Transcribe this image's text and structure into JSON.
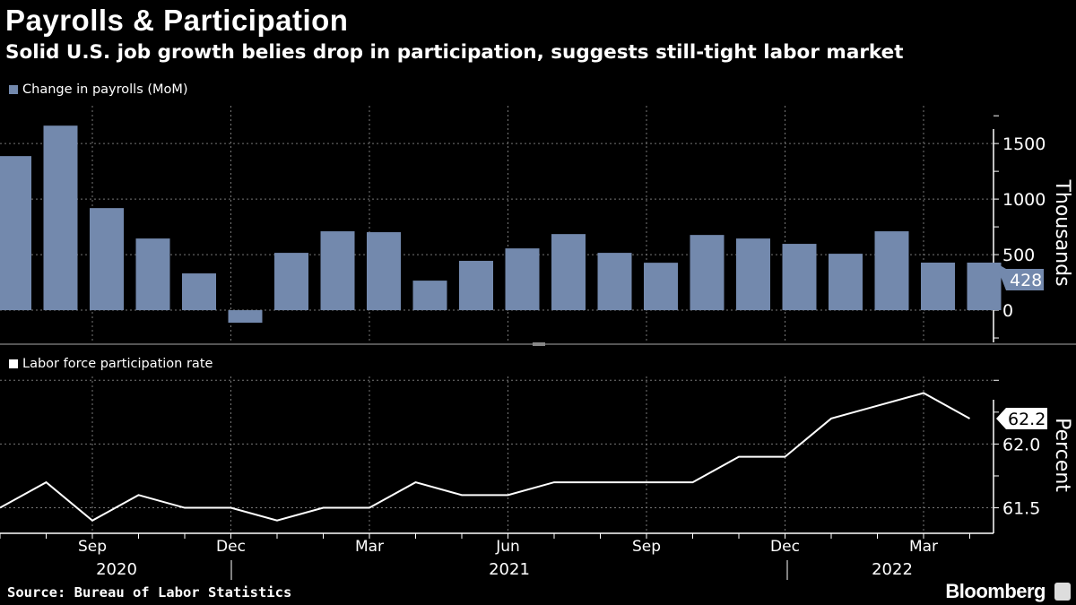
{
  "header": {
    "title": "Payrolls & Participation",
    "subtitle": "Solid U.S. job growth belies drop in participation, suggests still-tight labor market"
  },
  "footer": {
    "source": "Source: Bureau of Labor Statistics",
    "logo": "Bloomberg"
  },
  "chart_data": [
    {
      "type": "bar",
      "legend": "Change in payrolls (MoM)",
      "ylabel": "Thousands",
      "ylim": [
        -290,
        1840
      ],
      "yticks": [
        0,
        500,
        1000,
        1500
      ],
      "grid": true,
      "color": "#7389ad",
      "months": [
        "Jul 2020",
        "Aug 2020",
        "Sep 2020",
        "Oct 2020",
        "Nov 2020",
        "Dec 2020",
        "Jan 2021",
        "Feb 2021",
        "Mar 2021",
        "Apr 2021",
        "May 2021",
        "Jun 2021",
        "Jul 2021",
        "Aug 2021",
        "Sep 2021",
        "Oct 2021",
        "Nov 2021",
        "Dec 2021",
        "Jan 2022",
        "Feb 2022",
        "Mar 2022",
        "Apr 2022"
      ],
      "values": [
        1387,
        1661,
        919,
        645,
        331,
        -113,
        516,
        710,
        702,
        266,
        444,
        556,
        685,
        516,
        427,
        677,
        645,
        597,
        508,
        710,
        428,
        428
      ],
      "last_value_label": "428"
    },
    {
      "type": "line",
      "legend": "Labor force participation rate",
      "ylabel": "Percent",
      "ylim": [
        61.3,
        62.53
      ],
      "yticks": [
        61.5,
        62.0
      ],
      "grid": true,
      "color": "#ffffff",
      "months": [
        "Jul 2020",
        "Aug 2020",
        "Sep 2020",
        "Oct 2020",
        "Nov 2020",
        "Dec 2020",
        "Jan 2021",
        "Feb 2021",
        "Mar 2021",
        "Apr 2021",
        "May 2021",
        "Jun 2021",
        "Jul 2021",
        "Aug 2021",
        "Sep 2021",
        "Oct 2021",
        "Nov 2021",
        "Dec 2021",
        "Jan 2022",
        "Feb 2022",
        "Mar 2022",
        "Apr 2022"
      ],
      "values": [
        61.5,
        61.7,
        61.4,
        61.6,
        61.5,
        61.5,
        61.4,
        61.5,
        61.5,
        61.7,
        61.6,
        61.6,
        61.7,
        61.7,
        61.7,
        61.7,
        61.9,
        61.9,
        62.2,
        62.3,
        62.4,
        62.2
      ],
      "last_value_label": "62.2"
    }
  ],
  "x_axis": {
    "month_labels": [
      {
        "index": 2,
        "label": "Sep"
      },
      {
        "index": 5,
        "label": "Dec"
      },
      {
        "index": 8,
        "label": "Mar"
      },
      {
        "index": 11,
        "label": "Jun"
      },
      {
        "index": 14,
        "label": "Sep"
      },
      {
        "index": 17,
        "label": "Dec"
      },
      {
        "index": 20,
        "label": "Mar"
      }
    ],
    "year_labels": [
      "2020",
      "2021",
      "2022"
    ]
  }
}
